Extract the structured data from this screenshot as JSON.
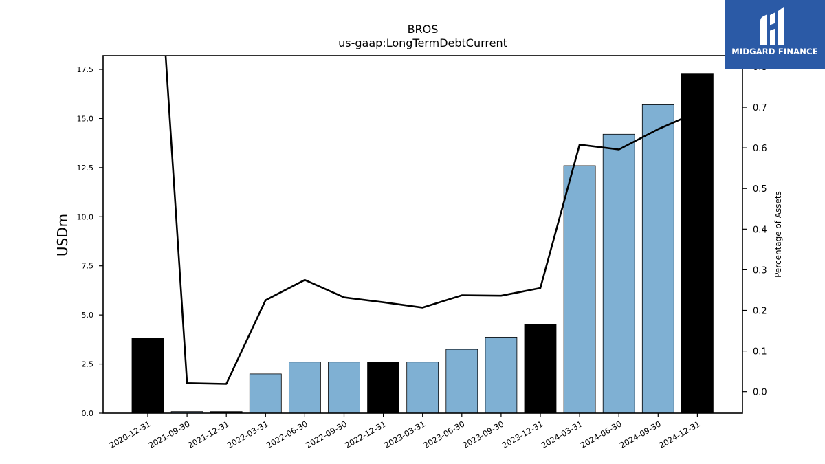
{
  "chart_data": {
    "type": "bar",
    "title": "BROS",
    "subtitle": "us-gaap:LongTermDebtCurrent",
    "ylabel": "USDm",
    "y2label": "Percentage of Assets",
    "categories": [
      "2020-12-31",
      "2021-09-30",
      "2021-12-31",
      "2022-03-31",
      "2022-06-30",
      "2022-09-30",
      "2022-12-31",
      "2023-03-31",
      "2023-06-30",
      "2023-09-30",
      "2023-12-31",
      "2024-03-31",
      "2024-06-30",
      "2024-09-30",
      "2024-12-31"
    ],
    "series": [
      {
        "type": "bar",
        "values": [
          3.8,
          0.08,
          0.08,
          2.0,
          2.6,
          2.6,
          2.6,
          2.6,
          3.25,
          3.87,
          4.5,
          12.6,
          14.2,
          15.7,
          17.3
        ],
        "colors": [
          "#000000",
          "#7fb0d3",
          "#000000",
          "#7fb0d3",
          "#7fb0d3",
          "#7fb0d3",
          "#000000",
          "#7fb0d3",
          "#7fb0d3",
          "#7fb0d3",
          "#000000",
          "#7fb0d3",
          "#7fb0d3",
          "#7fb0d3",
          "#000000"
        ]
      },
      {
        "type": "line",
        "axis": "right",
        "color": "#000000",
        "values": [
          1.5,
          0.021,
          0.019,
          0.225,
          0.275,
          0.232,
          0.22,
          0.207,
          0.237,
          0.236,
          0.255,
          0.608,
          0.596,
          0.646,
          0.688
        ]
      }
    ],
    "ylim": [
      0,
      18.2
    ],
    "yticks": [
      0.0,
      2.5,
      5.0,
      7.5,
      10.0,
      12.5,
      15.0,
      17.5
    ],
    "y2lim": [
      -0.053,
      0.827
    ],
    "y2ticks": [
      0.0,
      0.1,
      0.2,
      0.3,
      0.4,
      0.5,
      0.6,
      0.7,
      0.8
    ],
    "grid": false,
    "legend": "none"
  },
  "logo": {
    "text": "MIDGARD FINANCE",
    "icon": "midgard-logo-icon",
    "color": "#2b5aa6"
  }
}
